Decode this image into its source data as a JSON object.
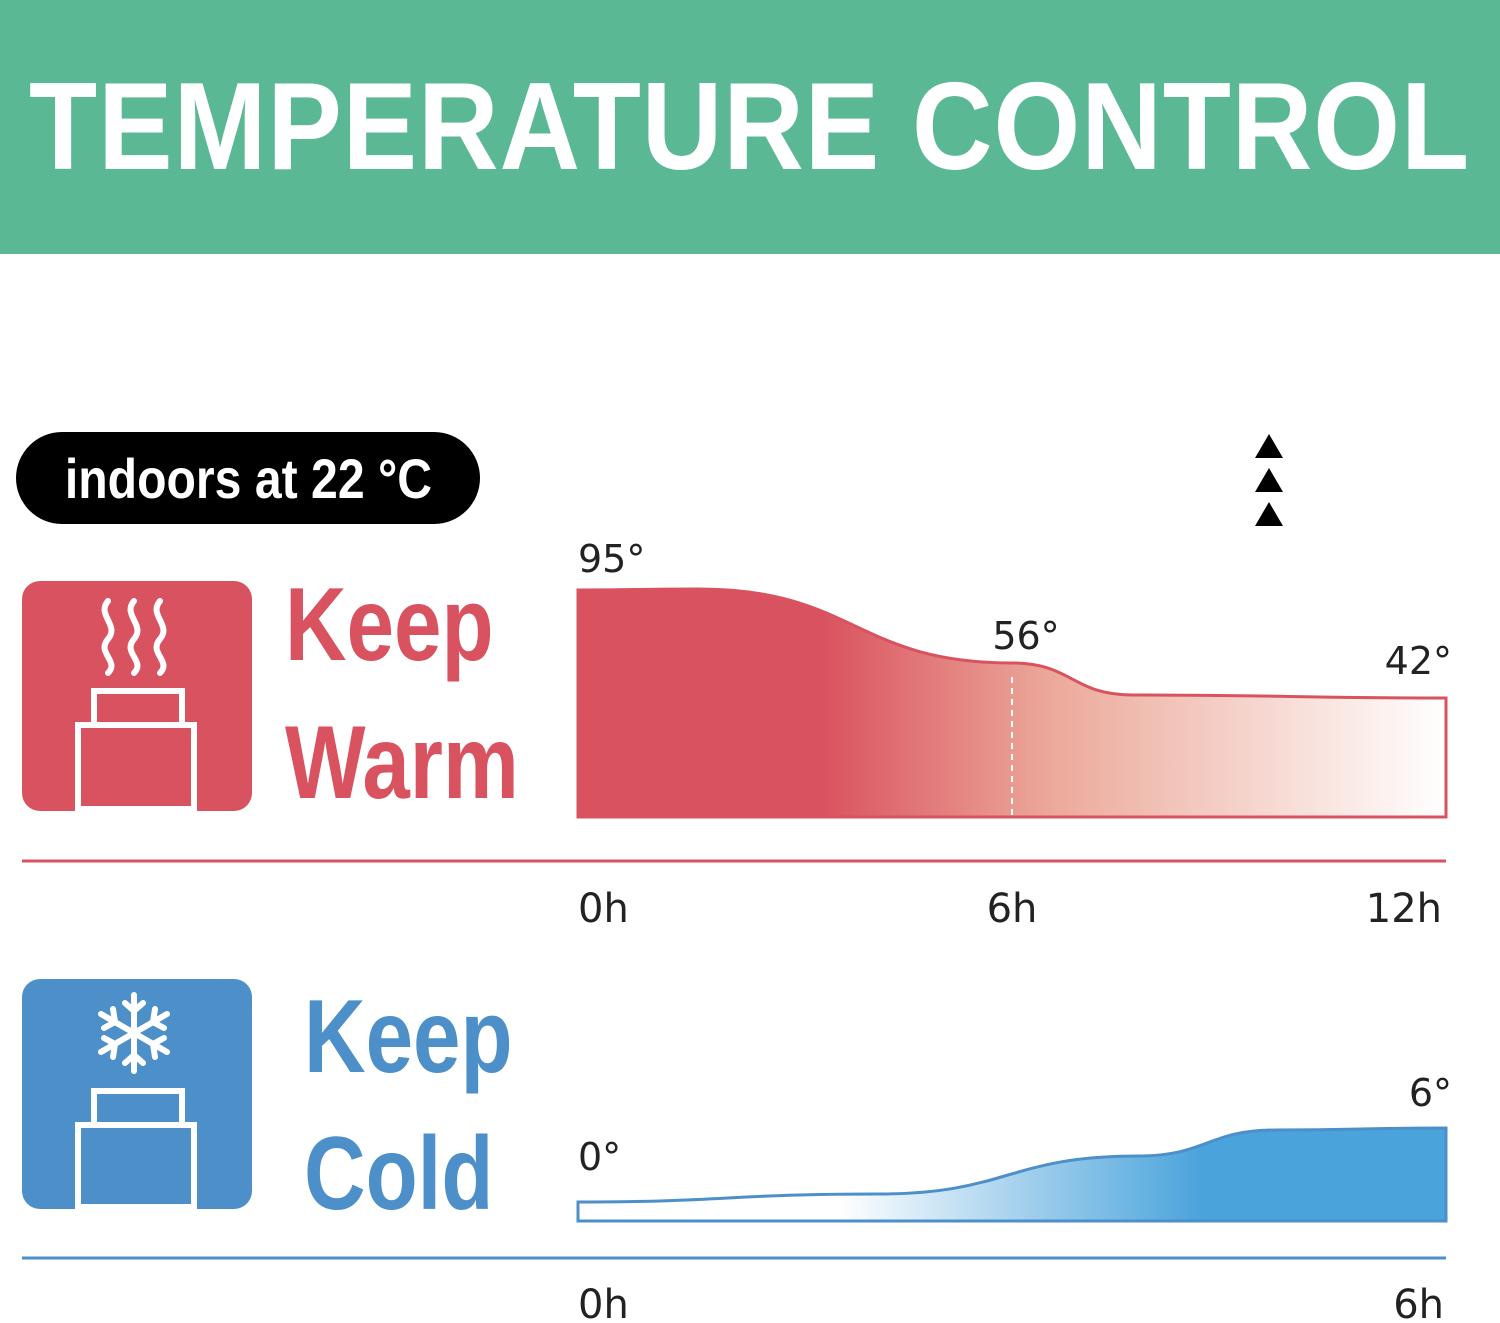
{
  "banner": {
    "title": "TEMPERATURE CONTROL"
  },
  "badge": {
    "text": "indoors at 22 °C"
  },
  "sections": {
    "warm": {
      "line1": "Keep",
      "line2": "Warm",
      "icon": "steaming-container-icon",
      "color": "#d9525f"
    },
    "cold": {
      "line1": "Keep",
      "line2": "Cold",
      "icon": "snowflake-container-icon",
      "color": "#4d8fc8"
    }
  },
  "colors": {
    "banner": "#5bb894",
    "warm": "#d9525f",
    "cold": "#4d8fc8",
    "cold_fill": "#4aa3db"
  },
  "indicator": {
    "icon": "triple-up-arrow-icon"
  },
  "chart_data": [
    {
      "type": "area",
      "name": "keep-warm",
      "x": [
        "0h",
        "6h",
        "12h"
      ],
      "y": [
        95,
        56,
        42
      ],
      "point_labels": [
        "95°",
        "56°",
        "42°"
      ],
      "tick_labels": [
        "0h",
        "6h",
        "12h"
      ],
      "marker": "6h"
    },
    {
      "type": "area",
      "name": "keep-cold",
      "x": [
        "0h",
        "6h"
      ],
      "y": [
        0,
        6
      ],
      "point_labels": [
        "0°",
        "6°"
      ],
      "tick_labels": [
        "0h",
        "6h"
      ]
    }
  ]
}
